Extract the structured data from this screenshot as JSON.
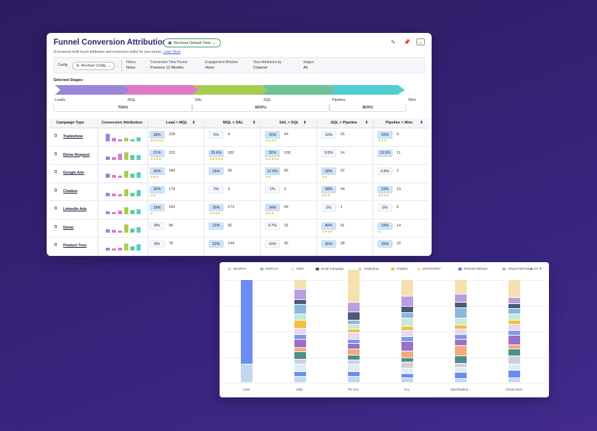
{
  "app": {
    "title": "Funnel Conversion Attribution",
    "view_label": "RevSure Default View",
    "subtitle": "AI-powered multi touch attribution and conversion paths for your funnel.",
    "learn_more": "Learn More"
  },
  "filters": {
    "config_label": "Config",
    "config_value": "RevSure Config",
    "filters_label": "Filters",
    "filters_value": "None",
    "period_label": "Conversion Time Period",
    "period_value": "Previous 12 Months",
    "engagement_label": "Engagement Window",
    "engagement_value": "None",
    "view_by_label": "View Attribution by",
    "view_by_value": "Channel",
    "stages_label": "Stages",
    "stages_value": "All"
  },
  "stages": {
    "title": "Selected Stages:",
    "labels": [
      "Leads",
      "MQL",
      "SAL",
      "SQL",
      "Pipeline",
      "Won"
    ],
    "colors": [
      "#9b86d8",
      "#e07ac4",
      "#a8cc52",
      "#6cc496",
      "#4fcfd4"
    ],
    "groups": [
      "TOFU",
      "MOFU",
      "BOFU"
    ]
  },
  "table": {
    "headers": [
      "Campaign Type",
      "Conversion Attribution",
      "Lead > MQL",
      "MQL > SAL",
      "SAL > SQL",
      "SQL > Pipeline",
      "Pipeline > Won"
    ],
    "rows": [
      {
        "name": "Tradeshow",
        "bars": [
          0.8,
          0.35,
          0.2,
          0.35,
          0.25,
          0.4
        ],
        "cells": [
          {
            "p": "28%",
            "c": "228",
            "s": "★★★★★",
            "hl": true
          },
          {
            "p": "5%",
            "c": "4",
            "s": "",
            "hl": false
          },
          {
            "p": "15%",
            "c": "64",
            "s": "★★★★",
            "hl": true
          },
          {
            "p": "10%",
            "c": "16",
            "s": "",
            "hl": false
          },
          {
            "p": "20%",
            "c": "9",
            "s": "★★★",
            "hl": true
          }
        ]
      },
      {
        "name": "Demo Request",
        "bars": [
          0.3,
          0.25,
          0.6,
          0.75,
          0.5,
          0.45
        ],
        "cells": [
          {
            "p": "21%",
            "c": "221",
            "s": "★★★★",
            "hl": true
          },
          {
            "p": "25.6%",
            "c": "182",
            "s": "★★★★★",
            "hl": true
          },
          {
            "p": "32%",
            "c": "108",
            "s": "★★★★★",
            "hl": true
          },
          {
            "p": "9.5%",
            "c": "14",
            "s": "",
            "hl": false
          },
          {
            "p": "13.5%",
            "c": "11",
            "s": "",
            "hl": true
          }
        ]
      },
      {
        "name": "Google Ads",
        "bars": [
          0.45,
          0.3,
          0.25,
          0.7,
          0.45,
          0.6
        ],
        "cells": [
          {
            "p": "20%",
            "c": "189",
            "s": "★★★",
            "hl": true
          },
          {
            "p": "15%",
            "c": "96",
            "s": "",
            "hl": true
          },
          {
            "p": "12.6%",
            "c": "55",
            "s": "★★",
            "hl": true
          },
          {
            "p": "28%",
            "c": "22",
            "s": "★★",
            "hl": true
          },
          {
            "p": "2.8%",
            "c": "2",
            "s": "",
            "hl": false
          }
        ]
      },
      {
        "name": "Chatbot",
        "bars": [
          0.35,
          0.25,
          0.2,
          0.7,
          0.35,
          0.6
        ],
        "cells": [
          {
            "p": "20%",
            "c": "178",
            "s": "★★",
            "hl": true
          },
          {
            "p": "2%",
            "c": "3",
            "s": "",
            "hl": false
          },
          {
            "p": "1%",
            "c": "2",
            "s": "",
            "hl": false
          },
          {
            "p": "38%",
            "c": "34",
            "s": "★★★",
            "hl": true
          },
          {
            "p": "23%",
            "c": "19",
            "s": "★★★★",
            "hl": true
          }
        ]
      },
      {
        "name": "LinkedIn Ads",
        "bars": [
          0.3,
          0.25,
          0.35,
          0.7,
          0.4,
          0.5
        ],
        "cells": [
          {
            "p": "18%",
            "c": "156",
            "s": "★",
            "hl": true
          },
          {
            "p": "25%",
            "c": "173",
            "s": "★★★★",
            "hl": true
          },
          {
            "p": "14%",
            "c": "59",
            "s": "★★★",
            "hl": true
          },
          {
            "p": "2%",
            "c": "1",
            "s": "",
            "hl": false
          },
          {
            "p": "5%",
            "c": "6",
            "s": "",
            "hl": false
          }
        ]
      },
      {
        "name": "Demo",
        "bars": [
          0.35,
          0.25,
          0.2,
          0.8,
          0.4,
          0.55
        ],
        "cells": [
          {
            "p": "8%",
            "c": "98",
            "s": "",
            "hl": false
          },
          {
            "p": "12%",
            "c": "82",
            "s": "",
            "hl": true
          },
          {
            "p": "9.7%",
            "c": "32",
            "s": "",
            "hl": false
          },
          {
            "p": "40%",
            "c": "41",
            "s": "★★★★",
            "hl": true
          },
          {
            "p": "19%",
            "c": "14",
            "s": "★",
            "hl": true
          }
        ]
      },
      {
        "name": "Product Tour",
        "bars": [
          0.3,
          0.25,
          0.3,
          0.75,
          0.45,
          0.65
        ],
        "cells": [
          {
            "p": "8%",
            "c": "78",
            "s": "",
            "hl": false
          },
          {
            "p": "22%",
            "c": "144",
            "s": "",
            "hl": true
          },
          {
            "p": "10%",
            "c": "36",
            "s": "",
            "hl": false
          },
          {
            "p": "35%",
            "c": "28",
            "s": "",
            "hl": true
          },
          {
            "p": "25%",
            "c": "22",
            "s": "",
            "hl": true
          }
        ]
      }
    ]
  },
  "chart_data": {
    "type": "bar",
    "stacked": true,
    "title": "",
    "categories": [
      "Lead",
      "MQL",
      "Pre SAL",
      "SAL",
      "SQL/Pipeline...",
      "Closed Won"
    ],
    "legend": [
      {
        "name": "SEARCH",
        "color": "#c9d6f5"
      },
      {
        "name": "DISPLAY",
        "color": "#7fcfa6"
      },
      {
        "name": "Other",
        "color": "#d9ecf7"
      },
      {
        "name": "Email Campaign",
        "color": "#4a5a7a"
      },
      {
        "name": "Tradeshow",
        "color": "#cfcfd8"
      },
      {
        "name": "Chatbot",
        "color": "#f0c040"
      },
      {
        "name": "DISCOVERY",
        "color": "#f6e0b8"
      },
      {
        "name": "External Webinar",
        "color": "#6a6ae0"
      },
      {
        "name": "Virtual Field Event",
        "color": "#bfb0e8"
      }
    ],
    "legend_more": "▲ 1/2 ▼",
    "segment_palette": [
      "#c5d5f2",
      "#6b8cf0",
      "#ddeef5",
      "#d0d0da",
      "#4e8e8a",
      "#f3a97a",
      "#9a70c8",
      "#7a9ae8",
      "#e8d8f0",
      "#f0c040",
      "#c8e8d8",
      "#8ab8e0",
      "#4a5a7a",
      "#b8a0e0",
      "#f5e0b0"
    ],
    "stacks": [
      [
        0.18,
        0.82
      ],
      [
        0.06,
        0.05,
        0.07,
        0.05,
        0.07,
        0.04,
        0.08,
        0.05,
        0.06,
        0.08,
        0.06,
        0.09,
        0.05,
        0.1,
        0.09
      ],
      [
        0.06,
        0.05,
        0.07,
        0.04,
        0.05,
        0.06,
        0.05,
        0.04,
        0.07,
        0.03,
        0.05,
        0.04,
        0.08,
        0.09,
        0.32
      ],
      [
        0.05,
        0.04,
        0.05,
        0.06,
        0.04,
        0.07,
        0.09,
        0.05,
        0.06,
        0.04,
        0.08,
        0.05,
        0.06,
        0.1,
        0.16
      ],
      [
        0.04,
        0.06,
        0.05,
        0.04,
        0.07,
        0.1,
        0.06,
        0.05,
        0.05,
        0.04,
        0.07,
        0.1,
        0.05,
        0.08,
        0.14
      ],
      [
        0.05,
        0.07,
        0.06,
        0.08,
        0.07,
        0.04,
        0.09,
        0.05,
        0.06,
        0.04,
        0.06,
        0.05,
        0.05,
        0.06,
        0.17
      ]
    ]
  }
}
